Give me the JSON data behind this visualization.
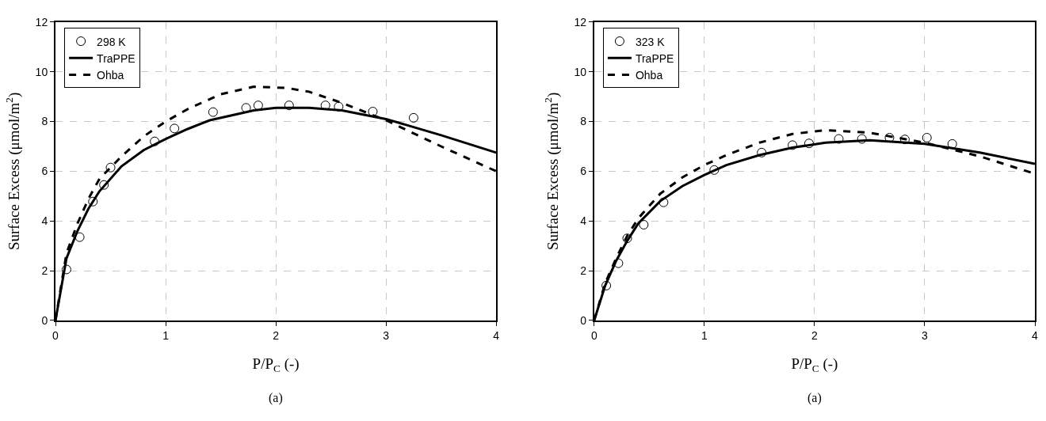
{
  "chart_data": [
    {
      "type": "line",
      "xlabel": "P/P$_{C}$ (-)",
      "ylabel": "Surface Excess (μmol/m$^{2}$)",
      "annotations": [
        "(a)"
      ],
      "xlim": [
        0,
        4
      ],
      "xticks": [
        0,
        1,
        2,
        3,
        4
      ],
      "ylim": [
        0,
        12
      ],
      "yticks": [
        0,
        2,
        4,
        6,
        8,
        10,
        12
      ],
      "grid": true,
      "legend": "top left",
      "series": [
        {
          "name": "298 K",
          "type": "scatter",
          "marker": "circle",
          "color": "#000000",
          "x": [
            0.1,
            0.22,
            0.34,
            0.44,
            0.5,
            0.9,
            1.08,
            1.43,
            1.73,
            1.84,
            2.12,
            2.45,
            2.57,
            2.88,
            3.25
          ],
          "values": [
            2.05,
            3.35,
            4.78,
            5.45,
            6.15,
            7.2,
            7.72,
            8.38,
            8.55,
            8.65,
            8.65,
            8.65,
            8.6,
            8.4,
            8.15
          ]
        },
        {
          "name": "TraPPE",
          "line_style": "solid",
          "color": "#000000",
          "x": [
            0,
            0.1,
            0.2,
            0.3,
            0.4,
            0.6,
            0.8,
            1,
            1.2,
            1.4,
            1.8,
            2,
            2.3,
            2.6,
            3,
            3.5,
            4
          ],
          "values": [
            0,
            2.5,
            3.6,
            4.5,
            5.2,
            6.2,
            6.85,
            7.3,
            7.7,
            8.05,
            8.45,
            8.55,
            8.55,
            8.45,
            8.1,
            7.45,
            6.75
          ]
        },
        {
          "name": "Ohba",
          "line_style": "dashed",
          "color": "#000000",
          "x": [
            0,
            0.1,
            0.2,
            0.3,
            0.4,
            0.6,
            0.8,
            1,
            1.2,
            1.5,
            1.8,
            2.1,
            2.3,
            2.6,
            3,
            3.5,
            4
          ],
          "values": [
            0,
            2.7,
            3.9,
            4.9,
            5.7,
            6.6,
            7.4,
            8.0,
            8.5,
            9.1,
            9.4,
            9.35,
            9.2,
            8.75,
            8.05,
            7.0,
            6.0
          ]
        }
      ]
    },
    {
      "type": "line",
      "xlabel": "P/P$_{C}$ (-)",
      "ylabel": "Surface Excess (μmol/m$^{2}$)",
      "annotations": [
        "(a)"
      ],
      "xlim": [
        0,
        4
      ],
      "xticks": [
        0,
        1,
        2,
        3,
        4
      ],
      "ylim": [
        0,
        12
      ],
      "yticks": [
        0,
        2,
        4,
        6,
        8,
        10,
        12
      ],
      "grid": true,
      "legend": "top left",
      "series": [
        {
          "name": "323 K",
          "type": "scatter",
          "marker": "circle",
          "color": "#000000",
          "x": [
            0.11,
            0.22,
            0.3,
            0.45,
            0.63,
            1.09,
            1.52,
            1.8,
            1.95,
            2.22,
            2.43,
            2.68,
            2.82,
            3.02,
            3.25
          ],
          "values": [
            1.4,
            2.3,
            3.3,
            3.85,
            4.75,
            6.05,
            6.75,
            7.05,
            7.12,
            7.3,
            7.3,
            7.35,
            7.28,
            7.35,
            7.1
          ]
        },
        {
          "name": "TraPPE",
          "line_style": "solid",
          "color": "#000000",
          "x": [
            0,
            0.1,
            0.2,
            0.3,
            0.4,
            0.6,
            0.8,
            1,
            1.2,
            1.5,
            1.8,
            2.1,
            2.5,
            3,
            3.5,
            4
          ],
          "values": [
            0,
            1.4,
            2.4,
            3.2,
            3.9,
            4.8,
            5.4,
            5.85,
            6.25,
            6.65,
            6.95,
            7.15,
            7.25,
            7.1,
            6.75,
            6.3
          ]
        },
        {
          "name": "Ohba",
          "line_style": "dashed",
          "color": "#000000",
          "x": [
            0,
            0.1,
            0.2,
            0.3,
            0.4,
            0.6,
            0.8,
            1,
            1.2,
            1.5,
            1.8,
            2.1,
            2.5,
            3,
            3.5,
            4
          ],
          "values": [
            0,
            1.5,
            2.5,
            3.4,
            4.1,
            5.1,
            5.75,
            6.25,
            6.65,
            7.15,
            7.5,
            7.65,
            7.55,
            7.15,
            6.6,
            5.9
          ]
        }
      ]
    }
  ]
}
